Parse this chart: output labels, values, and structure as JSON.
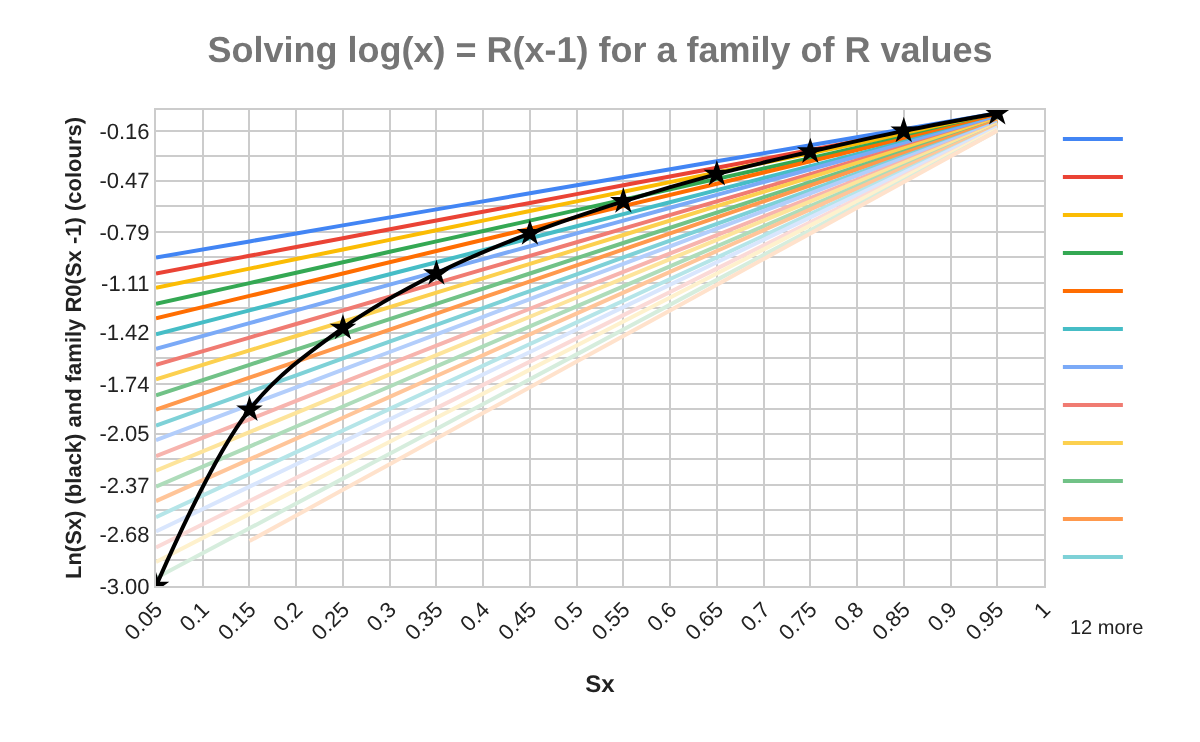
{
  "chart_data": {
    "type": "line",
    "title": "Solving log(x) = R(x-1) for a family of R values",
    "xlabel": "Sx",
    "ylabel": "Ln(Sx) (black) and family R0(Sx -1) (colours)",
    "x": [
      0.05,
      0.15,
      0.25,
      0.35,
      0.45,
      0.55,
      0.65,
      0.75,
      0.85,
      0.95
    ],
    "xlim": [
      0.05,
      1
    ],
    "xticks": [
      0.05,
      0.1,
      0.15,
      0.2,
      0.25,
      0.3,
      0.35,
      0.4,
      0.45,
      0.5,
      0.55,
      0.6,
      0.65,
      0.7,
      0.75,
      0.8,
      0.85,
      0.9,
      0.95,
      1
    ],
    "ylim": [
      -3,
      -0.03
    ],
    "yticks": [
      {
        "value": -3.0,
        "label": "-3.00"
      },
      {
        "value": -2.68,
        "label": "-2.68"
      },
      {
        "value": -2.37,
        "label": "-2.37"
      },
      {
        "value": -2.05,
        "label": "-2.05"
      },
      {
        "value": -1.74,
        "label": "-1.74"
      },
      {
        "value": -1.42,
        "label": "-1.42"
      },
      {
        "value": -1.11,
        "label": "-1.11"
      },
      {
        "value": -0.79,
        "label": "-0.79"
      },
      {
        "value": -0.47,
        "label": "-0.47"
      },
      {
        "value": -0.16,
        "label": "-0.16"
      }
    ],
    "grid": true,
    "marker": "none",
    "line_style": "solid",
    "annotations": [
      "12 more"
    ],
    "series": [
      {
        "color": "#4285f4",
        "values": [
          -0.95,
          -0.85,
          -0.75,
          -0.65,
          -0.55,
          -0.45,
          -0.35,
          -0.25,
          -0.15,
          -0.05
        ]
      },
      {
        "color": "#ea4335",
        "values": [
          -1.05,
          -0.94,
          -0.83,
          -0.72,
          -0.61,
          -0.5,
          -0.39,
          -0.28,
          -0.17,
          -0.06
        ]
      },
      {
        "color": "#fbbc04",
        "values": [
          -1.14,
          -1.02,
          -0.9,
          -0.78,
          -0.66,
          -0.54,
          -0.42,
          -0.3,
          -0.18,
          -0.06
        ]
      },
      {
        "color": "#34a853",
        "values": [
          -1.24,
          -1.11,
          -0.98,
          -0.85,
          -0.72,
          -0.59,
          -0.46,
          -0.33,
          -0.2,
          -0.07
        ]
      },
      {
        "color": "#ff6d01",
        "values": [
          -1.33,
          -1.19,
          -1.05,
          -0.91,
          -0.77,
          -0.63,
          -0.49,
          -0.35,
          -0.21,
          -0.07
        ]
      },
      {
        "color": "#46bdc6",
        "values": [
          -1.43,
          -1.28,
          -1.13,
          -0.98,
          -0.83,
          -0.68,
          -0.53,
          -0.38,
          -0.23,
          -0.08
        ]
      },
      {
        "color": "#7baaf7",
        "values": [
          -1.52,
          -1.36,
          -1.2,
          -1.04,
          -0.88,
          -0.72,
          -0.56,
          -0.4,
          -0.24,
          -0.08
        ]
      },
      {
        "color": "#f07b72",
        "values": [
          -1.62,
          -1.45,
          -1.28,
          -1.11,
          -0.94,
          -0.77,
          -0.6,
          -0.43,
          -0.26,
          -0.09
        ]
      },
      {
        "color": "#fcd04f",
        "values": [
          -1.71,
          -1.53,
          -1.35,
          -1.17,
          -0.99,
          -0.81,
          -0.63,
          -0.45,
          -0.27,
          -0.09
        ]
      },
      {
        "color": "#71c287",
        "values": [
          -1.81,
          -1.62,
          -1.43,
          -1.24,
          -1.05,
          -0.86,
          -0.67,
          -0.48,
          -0.29,
          -0.1
        ]
      },
      {
        "color": "#ff994d",
        "values": [
          -1.9,
          -1.7,
          -1.5,
          -1.3,
          -1.1,
          -0.9,
          -0.7,
          -0.5,
          -0.3,
          -0.1
        ]
      },
      {
        "color": "#7ed1d7",
        "values": [
          -2.0,
          -1.79,
          -1.58,
          -1.37,
          -1.16,
          -0.95,
          -0.74,
          -0.53,
          -0.32,
          -0.11
        ]
      },
      {
        "color": "#b3cefb",
        "values": [
          -2.09,
          -1.87,
          -1.65,
          -1.43,
          -1.21,
          -0.99,
          -0.77,
          -0.55,
          -0.33,
          -0.11
        ]
      },
      {
        "color": "#f7b4ae",
        "values": [
          -2.19,
          -1.96,
          -1.73,
          -1.5,
          -1.27,
          -1.04,
          -0.81,
          -0.58,
          -0.35,
          -0.12
        ]
      },
      {
        "color": "#fde49b",
        "values": [
          -2.28,
          -2.04,
          -1.8,
          -1.56,
          -1.32,
          -1.08,
          -0.84,
          -0.6,
          -0.36,
          -0.12
        ]
      },
      {
        "color": "#aedcba",
        "values": [
          -2.38,
          -2.13,
          -1.88,
          -1.63,
          -1.38,
          -1.13,
          -0.88,
          -0.63,
          -0.38,
          -0.13
        ]
      },
      {
        "color": "#ffc599",
        "values": [
          -2.47,
          -2.21,
          -1.95,
          -1.69,
          -1.43,
          -1.17,
          -0.91,
          -0.65,
          -0.39,
          -0.13
        ]
      },
      {
        "color": "#b5e5e8",
        "values": [
          -2.57,
          -2.3,
          -2.03,
          -1.76,
          -1.49,
          -1.22,
          -0.95,
          -0.68,
          -0.41,
          -0.14
        ]
      },
      {
        "color": "#d9e6fd",
        "values": [
          -2.66,
          -2.38,
          -2.1,
          -1.82,
          -1.54,
          -1.26,
          -0.98,
          -0.7,
          -0.42,
          -0.14
        ]
      },
      {
        "color": "#fbdad7",
        "values": [
          -2.76,
          -2.47,
          -2.18,
          -1.89,
          -1.6,
          -1.31,
          -1.02,
          -0.73,
          -0.44,
          -0.15
        ]
      },
      {
        "color": "#fef1cd",
        "values": [
          -2.85,
          -2.55,
          -2.25,
          -1.95,
          -1.65,
          -1.35,
          -1.05,
          -0.75,
          -0.45,
          -0.15
        ]
      },
      {
        "color": "#d6eddd",
        "values": [
          -2.95,
          -2.64,
          -2.33,
          -2.02,
          -1.71,
          -1.4,
          -1.09,
          -0.78,
          -0.47,
          -0.16
        ]
      },
      {
        "color": "#ffe2cc",
        "values": [
          null,
          -2.72,
          -2.4,
          -2.08,
          -1.76,
          -1.44,
          -1.12,
          -0.8,
          -0.48,
          -0.16
        ]
      },
      {
        "color": "#000000",
        "marker": "star",
        "values": [
          -3.0,
          -1.9,
          -1.39,
          -1.05,
          -0.8,
          -0.6,
          -0.43,
          -0.29,
          -0.16,
          -0.05
        ]
      }
    ]
  }
}
